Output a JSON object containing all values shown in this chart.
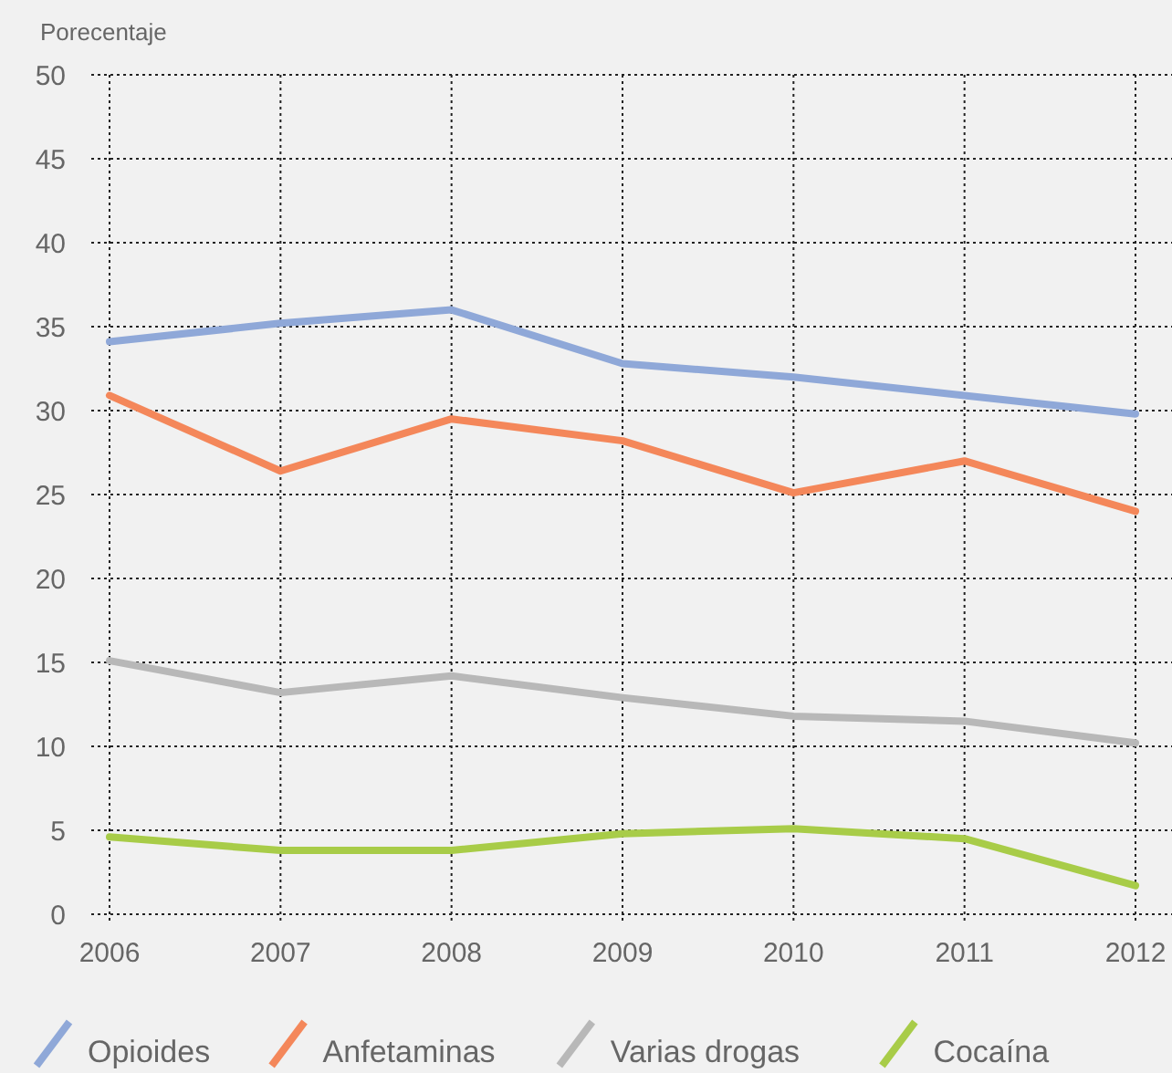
{
  "chart_data": {
    "type": "line",
    "ylabel": "Porecentaje",
    "x": [
      2006,
      2007,
      2008,
      2009,
      2010,
      2011,
      2012
    ],
    "xlim": [
      2006,
      2012
    ],
    "xticks": [
      2006,
      2007,
      2008,
      2009,
      2010,
      2011,
      2012
    ],
    "ylim": [
      0,
      50
    ],
    "yticks": [
      0,
      5,
      10,
      15,
      20,
      25,
      30,
      35,
      40,
      45,
      50
    ],
    "grid": true,
    "legend": "bottom",
    "marker": "none",
    "line_style": "solid",
    "series": [
      {
        "name": "Opioides",
        "color": "#8fa8d8",
        "values": [
          34.1,
          35.2,
          36.0,
          32.8,
          32.0,
          30.9,
          29.8
        ]
      },
      {
        "name": "Anfetaminas",
        "color": "#f4875a",
        "values": [
          30.9,
          26.4,
          29.5,
          28.2,
          25.1,
          27.0,
          24.0
        ]
      },
      {
        "name": "Varias drogas",
        "color": "#b8b8b8",
        "values": [
          15.1,
          13.2,
          14.2,
          12.9,
          11.8,
          11.5,
          10.2
        ]
      },
      {
        "name": "Cocaína",
        "color": "#a8cc48",
        "values": [
          4.6,
          3.8,
          3.8,
          4.8,
          5.1,
          4.5,
          1.7
        ]
      }
    ]
  }
}
